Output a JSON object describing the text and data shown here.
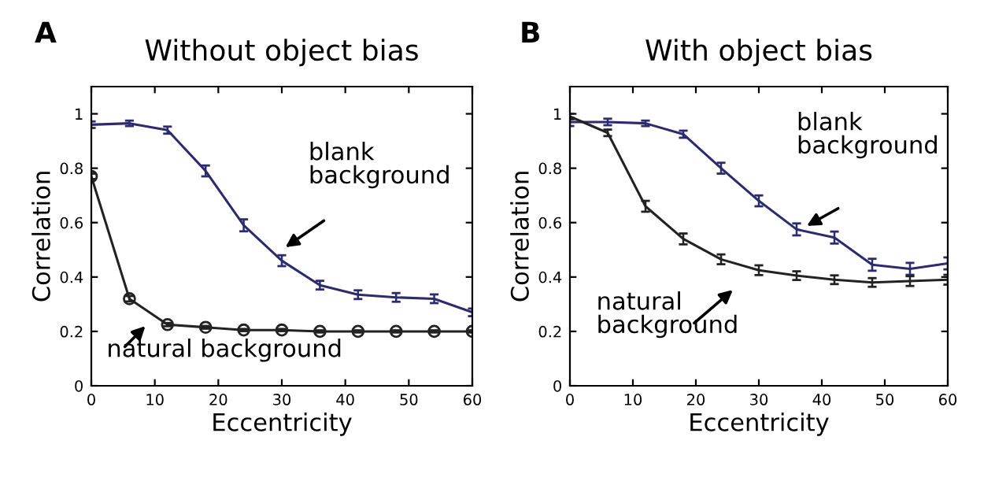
{
  "chart_data": [
    {
      "type": "line",
      "title": "Without object bias",
      "xlabel": "Eccentricity",
      "ylabel": "Correlation",
      "x": [
        0,
        6,
        12,
        18,
        24,
        30,
        36,
        42,
        48,
        54,
        60
      ],
      "series": [
        {
          "color": "#2b2b6e",
          "marker": "none",
          "values": [
            0.96,
            0.965,
            0.94,
            0.79,
            0.59,
            0.46,
            0.37,
            0.335,
            0.325,
            0.32,
            0.27
          ],
          "errors": [
            0.012,
            0.01,
            0.013,
            0.02,
            0.022,
            0.02,
            0.016,
            0.016,
            0.016,
            0.016,
            0.014
          ]
        },
        {
          "color": "#222222",
          "marker": "circle",
          "values": [
            0.77,
            0.32,
            0.225,
            0.215,
            0.205,
            0.205,
            0.2,
            0.2,
            0.2,
            0.2,
            0.2
          ],
          "errors": [
            0.01,
            0.01,
            0.006,
            0.005,
            0.004,
            0.004,
            0.004,
            0.004,
            0.004,
            0.004,
            0.004
          ]
        }
      ],
      "xlim": [
        0,
        60
      ],
      "ylim": [
        0,
        1.1
      ],
      "xticks": [
        0,
        10,
        20,
        30,
        40,
        50,
        60
      ],
      "yticks": [
        0,
        0.2,
        0.4,
        0.6,
        0.8,
        1
      ],
      "grid": false,
      "annotations": [
        "A",
        {
          "text": "blank\nbackground",
          "x": 30,
          "y": 0.5
        },
        "natural background"
      ]
    },
    {
      "type": "line",
      "title": "With object bias",
      "xlabel": "Eccentricity",
      "ylabel": "Correlation",
      "x": [
        0,
        6,
        12,
        18,
        24,
        30,
        36,
        42,
        48,
        54,
        60
      ],
      "series": [
        {
          "color": "#2b2b6e",
          "marker": "none",
          "values": [
            0.97,
            0.97,
            0.965,
            0.925,
            0.8,
            0.68,
            0.575,
            0.545,
            0.445,
            0.43,
            0.45
          ],
          "errors": [
            0.015,
            0.012,
            0.01,
            0.013,
            0.02,
            0.02,
            0.022,
            0.022,
            0.022,
            0.022,
            0.022
          ]
        },
        {
          "color": "#222222",
          "marker": "none",
          "values": [
            0.99,
            0.93,
            0.66,
            0.54,
            0.465,
            0.425,
            0.405,
            0.39,
            0.38,
            0.385,
            0.39
          ],
          "errors": [
            0.01,
            0.012,
            0.02,
            0.02,
            0.018,
            0.018,
            0.016,
            0.016,
            0.016,
            0.018,
            0.018
          ]
        }
      ],
      "xlim": [
        0,
        60
      ],
      "ylim": [
        0,
        1.1
      ],
      "xticks": [
        0,
        10,
        20,
        30,
        40,
        50,
        60
      ],
      "yticks": [
        0,
        0.2,
        0.4,
        0.6,
        0.8,
        1
      ],
      "grid": false,
      "annotations": [
        "B",
        {
          "text": "blank\nbackground",
          "x": 37,
          "y": 0.58
        },
        "natural\nbackground"
      ]
    }
  ]
}
